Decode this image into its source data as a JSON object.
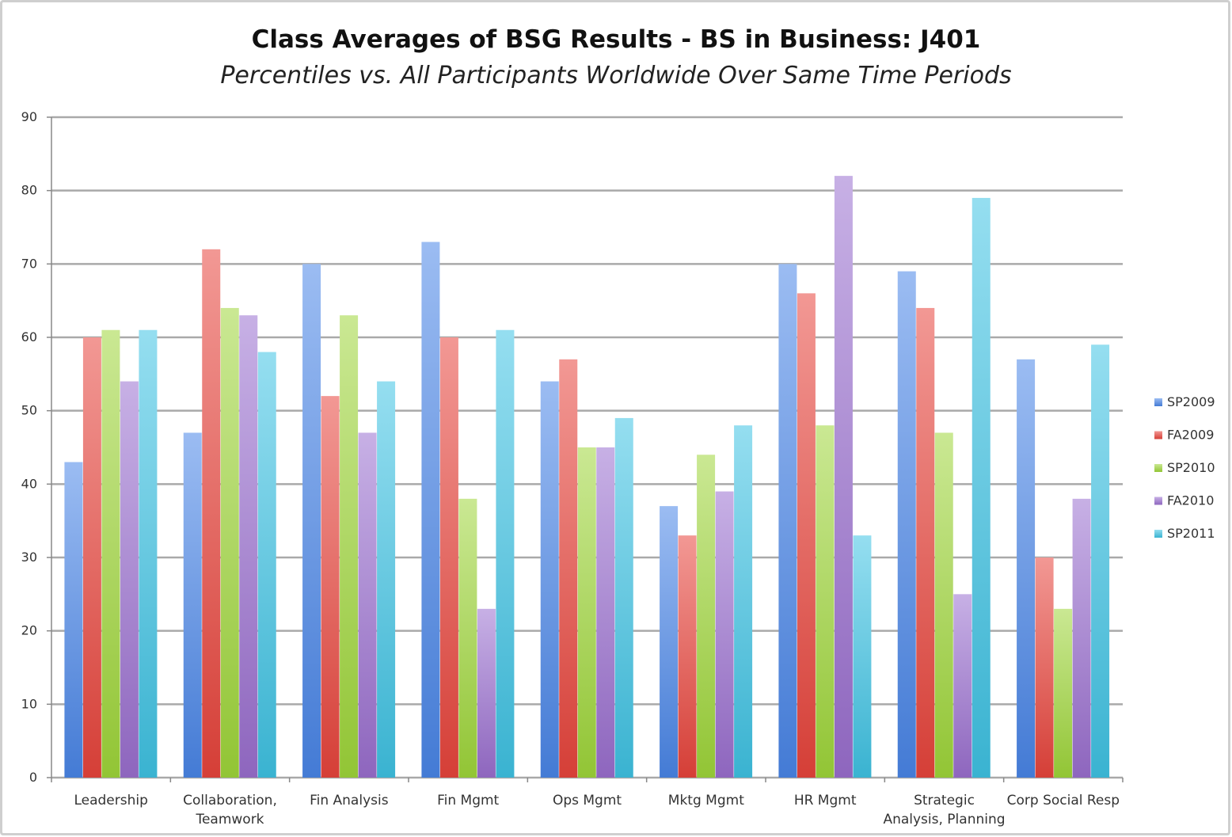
{
  "chart_data": {
    "type": "bar",
    "title": "Class Averages of BSG Results - BS in Business: J401",
    "subtitle": "Percentiles vs. All Participants Worldwide Over Same Time Periods",
    "xlabel": "",
    "ylabel": "",
    "ylim": [
      0,
      90
    ],
    "yticks": [
      "0",
      "10",
      "20",
      "30",
      "40",
      "50",
      "60",
      "70",
      "80",
      "90"
    ],
    "grid": true,
    "legend_position": "right",
    "categories": [
      [
        "Leadership"
      ],
      [
        "Collaboration,",
        "Teamwork"
      ],
      [
        "Fin Analysis"
      ],
      [
        "Fin Mgmt"
      ],
      [
        "Ops Mgmt"
      ],
      [
        "Mktg Mgmt"
      ],
      [
        "HR Mgmt"
      ],
      [
        "Strategic",
        "Analysis, Planning"
      ],
      [
        "Corp Social Resp"
      ]
    ],
    "series": [
      {
        "name": "SP2009",
        "color": "#4a86e8",
        "values": [
          43,
          47,
          70,
          73,
          54,
          37,
          70,
          69,
          57
        ]
      },
      {
        "name": "FA2009",
        "color": "#e8443c",
        "values": [
          60,
          72,
          52,
          60,
          57,
          33,
          66,
          64,
          30
        ]
      },
      {
        "name": "SP2010",
        "color": "#9fd63a",
        "values": [
          61,
          64,
          63,
          38,
          45,
          44,
          48,
          47,
          23
        ]
      },
      {
        "name": "FA2010",
        "color": "#9a6fcf",
        "values": [
          54,
          63,
          47,
          23,
          45,
          39,
          82,
          25,
          38
        ]
      },
      {
        "name": "SP2011",
        "color": "#3fc3e3",
        "values": [
          61,
          58,
          54,
          61,
          49,
          48,
          33,
          79,
          59
        ]
      }
    ]
  }
}
